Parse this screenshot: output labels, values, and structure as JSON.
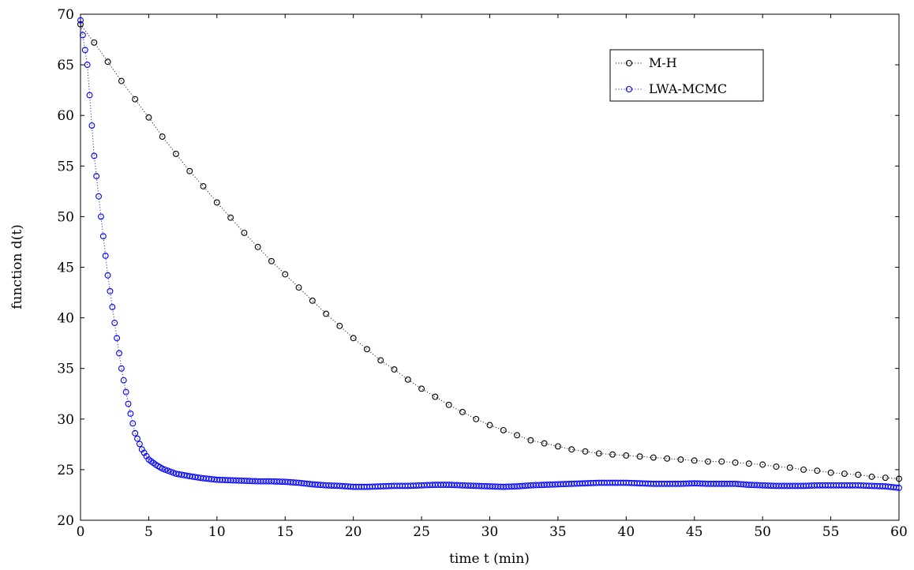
{
  "chart_data": {
    "type": "line",
    "xlabel": "time t (min)",
    "ylabel": "function d(t)",
    "xlim": [
      0,
      60
    ],
    "ylim": [
      20,
      70
    ],
    "xticks": [
      0,
      5,
      10,
      15,
      20,
      25,
      30,
      35,
      40,
      45,
      50,
      55,
      60
    ],
    "yticks": [
      20,
      25,
      30,
      35,
      40,
      45,
      50,
      55,
      60,
      65,
      70
    ],
    "grid": false,
    "legend_position": "top-right",
    "series": [
      {
        "name": "M-H",
        "color": "#000000",
        "marker": "circle",
        "line_style": "dotted",
        "points": [
          [
            0,
            69.0
          ],
          [
            1,
            67.2
          ],
          [
            2,
            65.3
          ],
          [
            3,
            63.4
          ],
          [
            4,
            61.6
          ],
          [
            5,
            59.8
          ],
          [
            6,
            57.9
          ],
          [
            7,
            56.2
          ],
          [
            8,
            54.5
          ],
          [
            9,
            53.0
          ],
          [
            10,
            51.4
          ],
          [
            11,
            49.9
          ],
          [
            12,
            48.4
          ],
          [
            13,
            47.0
          ],
          [
            14,
            45.6
          ],
          [
            15,
            44.3
          ],
          [
            16,
            43.0
          ],
          [
            17,
            41.7
          ],
          [
            18,
            40.4
          ],
          [
            19,
            39.2
          ],
          [
            20,
            38.0
          ],
          [
            21,
            36.9
          ],
          [
            22,
            35.8
          ],
          [
            23,
            34.9
          ],
          [
            24,
            33.9
          ],
          [
            25,
            33.0
          ],
          [
            26,
            32.2
          ],
          [
            27,
            31.4
          ],
          [
            28,
            30.7
          ],
          [
            29,
            30.0
          ],
          [
            30,
            29.4
          ],
          [
            31,
            28.9
          ],
          [
            32,
            28.4
          ],
          [
            33,
            27.9
          ],
          [
            34,
            27.6
          ],
          [
            35,
            27.3
          ],
          [
            36,
            27.0
          ],
          [
            37,
            26.8
          ],
          [
            38,
            26.6
          ],
          [
            39,
            26.5
          ],
          [
            40,
            26.4
          ],
          [
            41,
            26.3
          ],
          [
            42,
            26.2
          ],
          [
            43,
            26.1
          ],
          [
            44,
            26.0
          ],
          [
            45,
            25.9
          ],
          [
            46,
            25.8
          ],
          [
            47,
            25.8
          ],
          [
            48,
            25.7
          ],
          [
            49,
            25.6
          ],
          [
            50,
            25.5
          ],
          [
            51,
            25.3
          ],
          [
            52,
            25.2
          ],
          [
            53,
            25.0
          ],
          [
            54,
            24.9
          ],
          [
            55,
            24.7
          ],
          [
            56,
            24.6
          ],
          [
            57,
            24.5
          ],
          [
            58,
            24.3
          ],
          [
            59,
            24.2
          ],
          [
            60,
            24.1
          ]
        ]
      },
      {
        "name": "LWA-MCMC",
        "color": "#0000ff",
        "marker": "circle",
        "line_style": "dotted",
        "points": [
          [
            0,
            69.4
          ],
          [
            0.5,
            65.0
          ],
          [
            1,
            56.0
          ],
          [
            1.5,
            50.0
          ],
          [
            2,
            44.2
          ],
          [
            2.5,
            39.5
          ],
          [
            3,
            35.0
          ],
          [
            3.5,
            31.5
          ],
          [
            4,
            28.6
          ],
          [
            4.5,
            27.0
          ],
          [
            5,
            26.0
          ],
          [
            5.5,
            25.5
          ],
          [
            6,
            25.1
          ],
          [
            7,
            24.6
          ],
          [
            8,
            24.35
          ],
          [
            9,
            24.15
          ],
          [
            10,
            24.0
          ],
          [
            11,
            23.95
          ],
          [
            12,
            23.9
          ],
          [
            13,
            23.85
          ],
          [
            14,
            23.85
          ],
          [
            15,
            23.8
          ],
          [
            16,
            23.7
          ],
          [
            17,
            23.55
          ],
          [
            18,
            23.45
          ],
          [
            19,
            23.4
          ],
          [
            20,
            23.3
          ],
          [
            21,
            23.3
          ],
          [
            22,
            23.35
          ],
          [
            23,
            23.4
          ],
          [
            24,
            23.4
          ],
          [
            25,
            23.45
          ],
          [
            26,
            23.5
          ],
          [
            27,
            23.5
          ],
          [
            28,
            23.45
          ],
          [
            29,
            23.4
          ],
          [
            30,
            23.35
          ],
          [
            31,
            23.3
          ],
          [
            32,
            23.35
          ],
          [
            33,
            23.45
          ],
          [
            34,
            23.5
          ],
          [
            35,
            23.55
          ],
          [
            36,
            23.6
          ],
          [
            37,
            23.65
          ],
          [
            38,
            23.7
          ],
          [
            39,
            23.7
          ],
          [
            40,
            23.7
          ],
          [
            41,
            23.65
          ],
          [
            42,
            23.6
          ],
          [
            43,
            23.6
          ],
          [
            44,
            23.6
          ],
          [
            45,
            23.65
          ],
          [
            46,
            23.6
          ],
          [
            47,
            23.6
          ],
          [
            48,
            23.6
          ],
          [
            49,
            23.5
          ],
          [
            50,
            23.45
          ],
          [
            51,
            23.4
          ],
          [
            52,
            23.4
          ],
          [
            53,
            23.4
          ],
          [
            54,
            23.45
          ],
          [
            55,
            23.45
          ],
          [
            56,
            23.45
          ],
          [
            57,
            23.45
          ],
          [
            58,
            23.4
          ],
          [
            59,
            23.35
          ],
          [
            60,
            23.2
          ]
        ]
      }
    ]
  }
}
